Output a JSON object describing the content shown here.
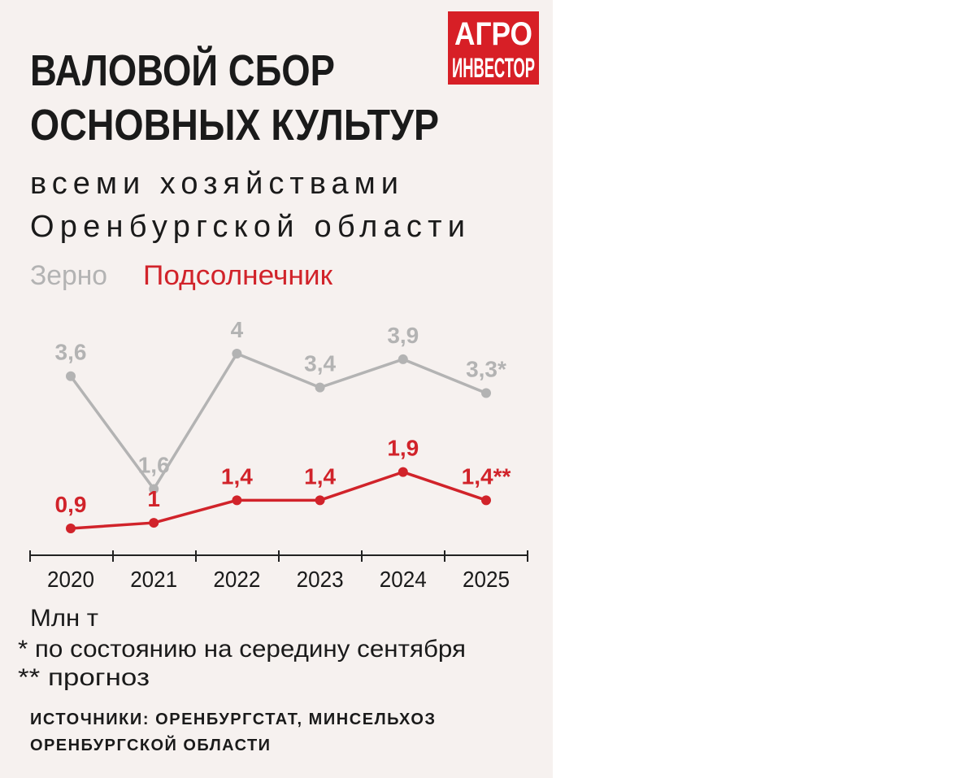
{
  "logo": [
    "АГРО",
    "ИНВЕСТОР"
  ],
  "chart_data": {
    "type": "line",
    "title": [
      "ВАЛОВОЙ СБОР",
      "ОСНОВНЫХ КУЛЬТУР"
    ],
    "subtitle": [
      "всеми хозяйствами",
      "Оренбургской области"
    ],
    "categories": [
      "2020",
      "2021",
      "2022",
      "2023",
      "2024",
      "2025"
    ],
    "series": [
      {
        "name": "Зерно",
        "color": "#b3b3b3",
        "values": [
          3.6,
          1.6,
          4,
          3.4,
          3.9,
          3.3
        ],
        "value_labels": [
          "3,6",
          "1,6",
          "4",
          "3,4",
          "3,9",
          "3,3*"
        ]
      },
      {
        "name": "Подсолнечник",
        "color": "#d1232a",
        "values": [
          0.9,
          1,
          1.4,
          1.4,
          1.9,
          1.4
        ],
        "value_labels": [
          "0,9",
          "1",
          "1,4",
          "1,4",
          "1,9",
          "1,4**"
        ]
      }
    ],
    "unit": "Млн т",
    "notes": [
      "* по состоянию на середину сентября",
      "** прогноз"
    ],
    "source": [
      "ИСТОЧНИКИ: ОРЕНБУРГСТАТ, МИНСЕЛЬХОЗ",
      "ОРЕНБУРГСКОЙ ОБЛАСТИ"
    ]
  }
}
